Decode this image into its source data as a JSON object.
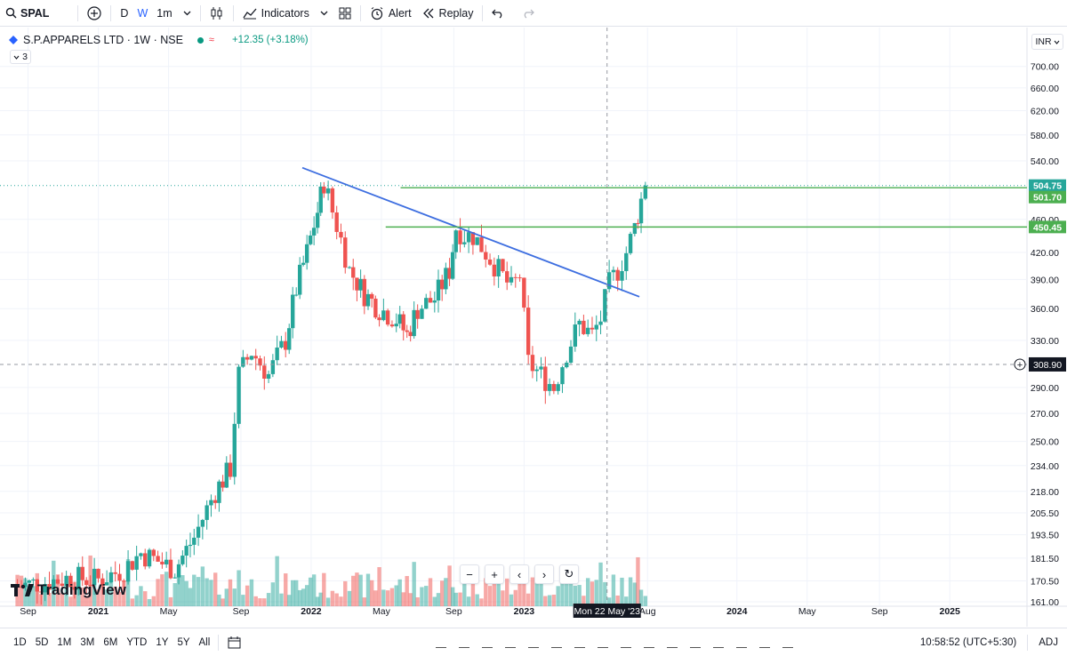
{
  "toolbar": {
    "symbol": "SPAL",
    "intervals": [
      "D",
      "W",
      "1m"
    ],
    "active_interval": "W",
    "indicators_label": "Indicators",
    "alert_label": "Alert",
    "replay_label": "Replay"
  },
  "legend": {
    "title": "S.P.APPARELS LTD · 1W · NSE",
    "change": "+12.35 (+3.18%)",
    "collapsed_count": "3"
  },
  "currency": "INR",
  "nav_buttons": [
    "−",
    "+",
    "‹",
    "›",
    "↻"
  ],
  "brand": "TradingView",
  "bottom": {
    "ranges": [
      "1D",
      "5D",
      "1M",
      "3M",
      "6M",
      "YTD",
      "1Y",
      "5Y",
      "All"
    ],
    "clock": "10:58:52 (UTC+5:30)",
    "adj_label": "ADJ"
  },
  "colors": {
    "up": "#26a69a",
    "down": "#ef5350",
    "trendline": "#3d6ee0",
    "level": "#4caf50",
    "crosshair_label_bg": "#131722"
  },
  "chart_data": {
    "type": "candlestick",
    "symbol": "S.P.APPARELS LTD",
    "exchange": "NSE",
    "interval": "1W",
    "scale": "log",
    "ylim": [
      161,
      760
    ],
    "y_ticks": [
      700,
      660,
      620,
      580,
      540,
      460,
      420,
      390,
      360,
      330,
      290,
      270,
      250,
      234,
      218,
      205.5,
      193.5,
      181.5,
      170.5,
      161
    ],
    "y_tick_labels": [
      "700.00",
      "660.00",
      "620.00",
      "580.00",
      "540.00",
      "460.00",
      "420.00",
      "390.00",
      "360.00",
      "330.00",
      "290.00",
      "270.00",
      "250.00",
      "234.00",
      "218.00",
      "205.50",
      "193.50",
      "181.50",
      "170.50",
      "161.00"
    ],
    "x_labels": [
      "Sep",
      "2021",
      "May",
      "Sep",
      "2022",
      "May",
      "Sep",
      "2023",
      "Aug",
      "2024",
      "May",
      "Sep",
      "2025"
    ],
    "crosshair_x_label": "Mon 22 May '23",
    "crosshair_price": 308.9,
    "crosshair_price_label": "308.90",
    "price_labels": [
      {
        "value": 504.75,
        "label": "504.75",
        "kind": "last"
      },
      {
        "value": 501.7,
        "label": "501.70",
        "kind": "level"
      },
      {
        "value": 450.45,
        "label": "450.45",
        "kind": "level"
      }
    ],
    "horizontal_levels": [
      501.7,
      450.45
    ],
    "trendline": [
      {
        "date": "2021-12",
        "price": 530
      },
      {
        "date": "2023-07",
        "price": 372
      }
    ],
    "price_path": [
      [
        2020.62,
        168
      ],
      [
        2020.75,
        170
      ],
      [
        2020.87,
        172
      ],
      [
        2021.0,
        171
      ],
      [
        2021.12,
        176
      ],
      [
        2021.2,
        184
      ],
      [
        2021.28,
        180
      ],
      [
        2021.36,
        176
      ],
      [
        2021.45,
        192
      ],
      [
        2021.55,
        218
      ],
      [
        2021.62,
        232
      ],
      [
        2021.66,
        300
      ],
      [
        2021.72,
        320
      ],
      [
        2021.8,
        300
      ],
      [
        2021.88,
        330
      ],
      [
        2021.93,
        380
      ],
      [
        2021.98,
        420
      ],
      [
        2022.03,
        470
      ],
      [
        2022.06,
        510
      ],
      [
        2022.1,
        470
      ],
      [
        2022.18,
        400
      ],
      [
        2022.25,
        375
      ],
      [
        2022.32,
        360
      ],
      [
        2022.4,
        350
      ],
      [
        2022.45,
        335
      ],
      [
        2022.5,
        360
      ],
      [
        2022.58,
        370
      ],
      [
        2022.65,
        400
      ],
      [
        2022.68,
        450
      ],
      [
        2022.72,
        440
      ],
      [
        2022.76,
        440
      ],
      [
        2022.82,
        420
      ],
      [
        2022.88,
        400
      ],
      [
        2022.94,
        380
      ],
      [
        2022.98,
        395
      ],
      [
        2023.0,
        350
      ],
      [
        2023.02,
        310
      ],
      [
        2023.08,
        300
      ],
      [
        2023.14,
        290
      ],
      [
        2023.2,
        320
      ],
      [
        2023.26,
        345
      ],
      [
        2023.32,
        335
      ],
      [
        2023.36,
        350
      ],
      [
        2023.4,
        385
      ],
      [
        2023.44,
        400
      ],
      [
        2023.48,
        420
      ],
      [
        2023.52,
        450
      ],
      [
        2023.55,
        485
      ],
      [
        2023.57,
        504.75
      ]
    ]
  }
}
